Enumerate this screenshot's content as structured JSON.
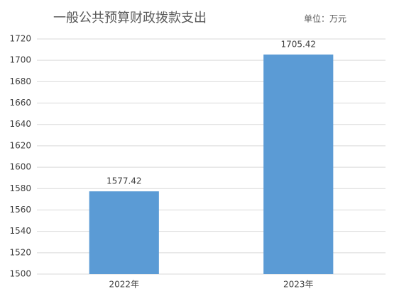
{
  "chart_data": {
    "type": "bar",
    "title": "一般公共预算财政拨款支出",
    "unit_note": "单位：万元",
    "categories": [
      "2022年",
      "2023年"
    ],
    "values": [
      1577.42,
      1705.42
    ],
    "color": "#5b9bd5",
    "ylim": [
      1500,
      1720
    ],
    "yticks": [
      1500,
      1520,
      1540,
      1560,
      1580,
      1600,
      1620,
      1640,
      1660,
      1680,
      1700,
      1720
    ],
    "grid": true
  }
}
